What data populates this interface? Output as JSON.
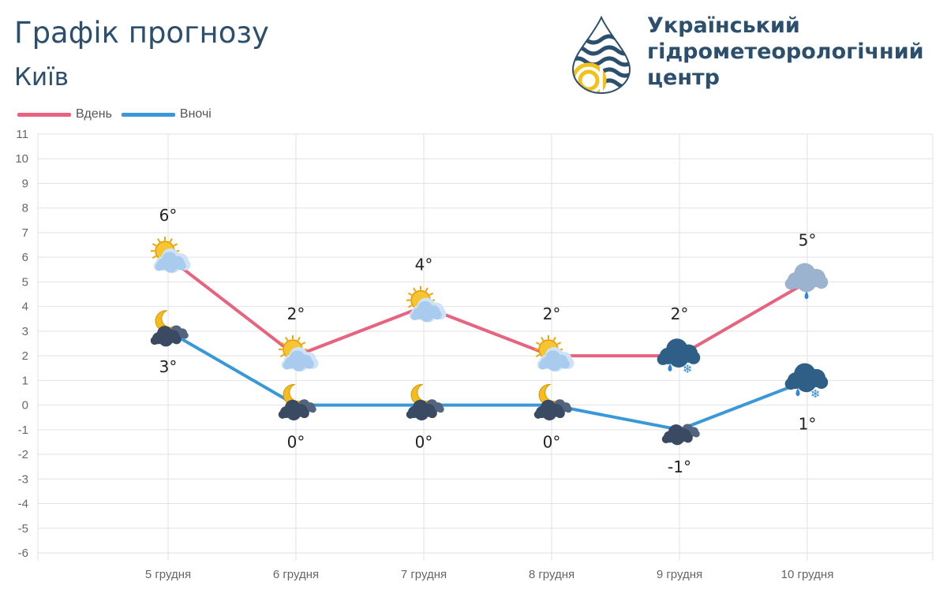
{
  "header": {
    "title": "Графік прогнозу",
    "city": "Київ"
  },
  "logo": {
    "line1": "Український",
    "line2": "гідрометеорологічний",
    "line3": "центр"
  },
  "colors": {
    "day": "#e8637f",
    "night": "#3a98d8",
    "text": "#2d4f6e",
    "grid": "#e2e2e2"
  },
  "chart_data": {
    "type": "line",
    "categories": [
      "5 грудня",
      "6 грудня",
      "7 грудня",
      "8 грудня",
      "9 грудня",
      "10 грудня"
    ],
    "series": [
      {
        "name": "Вдень",
        "values": [
          6,
          2,
          4,
          2,
          2,
          5
        ],
        "labels": [
          "6°",
          "2°",
          "4°",
          "2°",
          "2°",
          "5°"
        ],
        "icons": [
          "sun-cloud-icon",
          "sun-cloud-icon",
          "sun-cloud-icon",
          "sun-cloud-icon",
          "dark-cloud-rain-snow-icon",
          "cloud-rain-icon"
        ]
      },
      {
        "name": "Вночі",
        "values": [
          3,
          0,
          0,
          0,
          -1,
          1
        ],
        "labels": [
          "3°",
          "0°",
          "0°",
          "0°",
          "-1°",
          "1°"
        ],
        "icons": [
          "moon-cloud-icon",
          "moon-cloud-icon",
          "moon-cloud-icon",
          "moon-cloud-icon",
          "night-cloud-icon",
          "dark-cloud-rain-snow-icon"
        ]
      }
    ],
    "ylim": [
      -6,
      11
    ],
    "yticks": [
      "11",
      "10",
      "9",
      "8",
      "7",
      "6",
      "5",
      "4",
      "3",
      "2",
      "1",
      "0",
      "-1",
      "-2",
      "-3",
      "-4",
      "-5",
      "-6"
    ],
    "grid": true,
    "legend": "top-left"
  }
}
